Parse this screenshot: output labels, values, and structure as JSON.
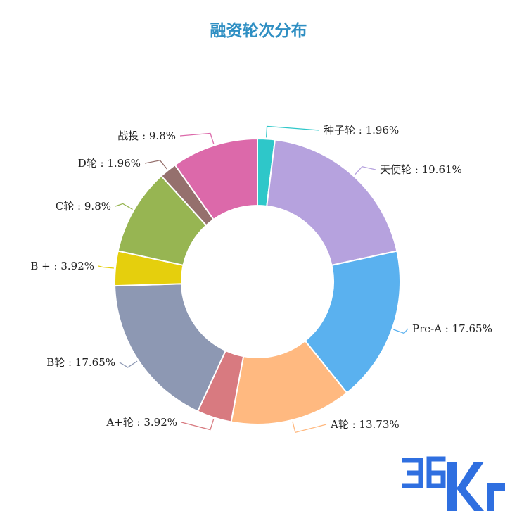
{
  "chart_data": {
    "type": "pie",
    "title": "融资轮次分布",
    "donut": true,
    "slices": [
      {
        "name": "种子轮",
        "label": "种子轮 : 1.96%",
        "value": 1.96,
        "color": "#2ec7c9"
      },
      {
        "name": "天使轮",
        "label": "天使轮 : 19.61%",
        "value": 19.61,
        "color": "#b6a2de"
      },
      {
        "name": "Pre-A",
        "label": "Pre-A : 17.65%",
        "value": 17.65,
        "color": "#5ab1ef"
      },
      {
        "name": "A轮",
        "label": "A轮 : 13.73%",
        "value": 13.73,
        "color": "#ffb980"
      },
      {
        "name": "A+轮",
        "label": "A+轮 : 3.92%",
        "value": 3.92,
        "color": "#d87a80"
      },
      {
        "name": "B轮",
        "label": "B轮 : 17.65%",
        "value": 17.65,
        "color": "#8d98b3"
      },
      {
        "name": "B +",
        "label": "B + : 3.92%",
        "value": 3.92,
        "color": "#e5cf0d"
      },
      {
        "name": "C轮",
        "label": "C轮 : 9.8%",
        "value": 9.8,
        "color": "#97b552"
      },
      {
        "name": "D轮",
        "label": "D轮 : 1.96%",
        "value": 1.96,
        "color": "#95706d"
      },
      {
        "name": "战投",
        "label": "战投 : 9.8%",
        "value": 9.8,
        "color": "#dc69aa"
      }
    ]
  },
  "watermark": {
    "text": "36Kr",
    "color": "#2f6fe0"
  }
}
